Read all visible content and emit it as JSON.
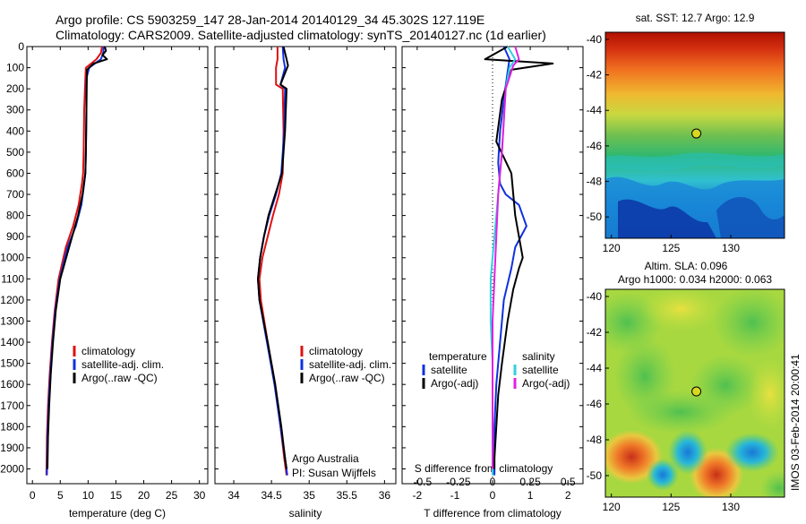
{
  "header": {
    "line1": "Argo profile: CS 5903259_147 28-Jan-2014 20140129_34 45.302S 127.119E",
    "line2": "Climatology: CARS2009. Satellite-adjusted climatology: synTS_20140127.nc (1d earlier)"
  },
  "footer_stamp": "IMOS 03-Feb-2014 20:00:41",
  "colors": {
    "climatology": "#e01010",
    "satellite": "#1030e0",
    "argo": "#000000",
    "sal_satellite": "#30d0e0",
    "sal_argo": "#e020e0"
  },
  "chart_data": [
    {
      "type": "line",
      "id": "temperature",
      "xlabel": "temperature (deg C)",
      "ylabel": "",
      "xlim": [
        -1,
        31.5
      ],
      "ylim": [
        2070,
        0
      ],
      "xticks": [
        "0",
        "5",
        "10",
        "15",
        "20",
        "25",
        "30"
      ],
      "xtick_values": [
        0,
        5,
        10,
        15,
        20,
        25,
        30
      ],
      "yticks": [
        "0",
        "100",
        "200",
        "300",
        "400",
        "500",
        "600",
        "700",
        "800",
        "900",
        "1000",
        "1100",
        "1200",
        "1300",
        "1400",
        "1500",
        "1600",
        "1700",
        "1800",
        "1900",
        "2000"
      ],
      "ytick_values": [
        0,
        100,
        200,
        300,
        400,
        500,
        600,
        700,
        800,
        900,
        1000,
        1100,
        1200,
        1300,
        1400,
        1500,
        1600,
        1700,
        1800,
        1900,
        2000
      ],
      "legend": [
        "climatology",
        "satellite-adj. clim.",
        "Argo(..raw -QC)"
      ],
      "series": [
        {
          "name": "climatology",
          "color": "climatology",
          "x": [
            12.5,
            12.3,
            11.5,
            9.6,
            9.5,
            9.3,
            9.2,
            9.1,
            8.9,
            8.3,
            7.3,
            6.0,
            4.7,
            4.0,
            3.5,
            3.1,
            2.8,
            2.6,
            2.5
          ],
          "y": [
            0,
            30,
            60,
            100,
            150,
            300,
            500,
            600,
            650,
            750,
            850,
            950,
            1100,
            1250,
            1400,
            1550,
            1700,
            1850,
            2030
          ]
        },
        {
          "name": "satellite-adj. clim.",
          "color": "satellite",
          "x": [
            12.8,
            12.7,
            12.3,
            10.2,
            9.7,
            9.7,
            9.6,
            9.5,
            9.3,
            8.8,
            7.8,
            6.3,
            4.9,
            4.1,
            3.6,
            3.2,
            2.9,
            2.7,
            2.6
          ],
          "y": [
            0,
            30,
            60,
            100,
            150,
            300,
            500,
            600,
            650,
            750,
            850,
            950,
            1100,
            1250,
            1400,
            1550,
            1700,
            1850,
            2030
          ]
        },
        {
          "name": "Argo(..raw -QC)",
          "color": "argo",
          "x": [
            13.0,
            13.2,
            12.6,
            13.4,
            11.0,
            9.8,
            9.7,
            9.6,
            9.5,
            9.0,
            8.2,
            6.6,
            5.0,
            4.2,
            3.7,
            3.3,
            3.0,
            2.8,
            2.7
          ],
          "y": [
            0,
            20,
            40,
            60,
            80,
            110,
            300,
            500,
            600,
            700,
            800,
            950,
            1100,
            1250,
            1400,
            1550,
            1700,
            1850,
            2000
          ]
        }
      ]
    },
    {
      "type": "line",
      "id": "salinity",
      "xlabel": "salinity",
      "xlim": [
        33.75,
        36.15
      ],
      "ylim": [
        2070,
        0
      ],
      "xticks": [
        "34",
        "34.5",
        "35",
        "35.5",
        "36"
      ],
      "xtick_values": [
        34,
        34.5,
        35,
        35.5,
        36
      ],
      "legend": [
        "climatology",
        "satellite-adj. clim.",
        "Argo(..raw -QC)"
      ],
      "annotation": [
        "Argo Australia",
        "PI: Susan Wijffels"
      ],
      "series": [
        {
          "name": "climatology",
          "color": "climatology",
          "x": [
            34.58,
            34.58,
            34.56,
            34.56,
            34.65,
            34.66,
            34.65,
            34.6,
            34.52,
            34.45,
            34.38,
            34.34,
            34.36,
            34.45,
            34.55,
            34.62,
            34.67,
            34.7
          ],
          "y": [
            0,
            60,
            100,
            180,
            200,
            400,
            600,
            700,
            800,
            900,
            1000,
            1100,
            1200,
            1400,
            1600,
            1800,
            1950,
            2030
          ]
        },
        {
          "name": "satellite-adj. clim.",
          "color": "satellite",
          "x": [
            34.65,
            34.66,
            34.68,
            34.62,
            34.68,
            34.67,
            34.63,
            34.56,
            34.47,
            34.4,
            34.35,
            34.32,
            34.34,
            34.44,
            34.54,
            34.62,
            34.68,
            34.71
          ],
          "y": [
            0,
            60,
            100,
            180,
            200,
            400,
            600,
            700,
            800,
            900,
            1000,
            1100,
            1200,
            1400,
            1600,
            1800,
            1950,
            2030
          ]
        },
        {
          "name": "Argo(..raw -QC)",
          "color": "argo",
          "x": [
            34.66,
            34.7,
            34.72,
            34.62,
            34.7,
            34.68,
            34.64,
            34.55,
            34.46,
            34.4,
            34.35,
            34.32,
            34.34,
            34.45,
            34.55,
            34.63,
            34.68,
            34.7
          ],
          "y": [
            0,
            60,
            90,
            180,
            200,
            400,
            600,
            700,
            800,
            900,
            1000,
            1100,
            1200,
            1400,
            1600,
            1800,
            1950,
            2000
          ]
        }
      ]
    },
    {
      "type": "line",
      "id": "difference",
      "xlabel": "T difference from climatology",
      "xlabel_top": "S difference from climatology",
      "xlim": [
        -2.4,
        2.4
      ],
      "ylim": [
        2070,
        0
      ],
      "xticks": [
        "-2",
        "-1",
        "0",
        "1",
        "2"
      ],
      "xtick_values": [
        -2,
        -1,
        0,
        1,
        2
      ],
      "sticks": [
        "-0.5",
        "-0.25",
        "0",
        "0.25",
        "0.5"
      ],
      "stick_values": [
        -2,
        -1,
        0,
        1,
        2
      ],
      "legend_left_title": "temperature",
      "legend_right_title": "salinity",
      "legend_left": [
        "satellite",
        "Argo(-adj)"
      ],
      "legend_right": [
        "satellite",
        "Argo(-adj)"
      ],
      "series": [
        {
          "name": "temperature satellite",
          "color": "satellite",
          "x": [
            0.3,
            0.45,
            0.4,
            0.3,
            0.2,
            0.15,
            0.2,
            0.35,
            0.7,
            0.9,
            0.6,
            0.5,
            0.3,
            0.2,
            0.1,
            0.05,
            0.05,
            0.05
          ],
          "y": [
            0,
            60,
            120,
            250,
            400,
            550,
            650,
            700,
            750,
            850,
            950,
            1050,
            1200,
            1400,
            1600,
            1800,
            1950,
            2030
          ]
        },
        {
          "name": "temperature Argo(-adj)",
          "color": "argo",
          "x": [
            0.4,
            -0.2,
            1.6,
            0.5,
            0.25,
            0.1,
            0.5,
            0.6,
            0.7,
            0.8,
            0.7,
            0.55,
            0.4,
            0.25,
            0.15,
            0.1,
            0.05,
            0.05
          ],
          "y": [
            0,
            60,
            80,
            110,
            250,
            450,
            600,
            800,
            900,
            1000,
            1050,
            1150,
            1300,
            1500,
            1650,
            1800,
            1950,
            2000
          ]
        },
        {
          "name": "salinity satellite",
          "color": "sal_satellite",
          "x": [
            0.4,
            0.6,
            0.45,
            0.35,
            0.3,
            0.25,
            0.15,
            0.05,
            -0.05,
            -0.05,
            0.0,
            0.0,
            0.0
          ],
          "y": [
            0,
            60,
            100,
            200,
            350,
            500,
            700,
            900,
            1100,
            1300,
            1500,
            1800,
            2030
          ]
        },
        {
          "name": "salinity Argo(-adj)",
          "color": "sal_argo",
          "x": [
            0.6,
            0.7,
            0.55,
            0.35,
            0.3,
            0.25,
            0.15,
            0.1,
            0.05,
            0.0,
            0.0,
            0.0,
            0.0
          ],
          "y": [
            0,
            60,
            90,
            200,
            350,
            500,
            700,
            900,
            1100,
            1300,
            1500,
            1800,
            2000
          ]
        }
      ]
    },
    {
      "type": "heatmap",
      "id": "sst_map",
      "title": "sat. SST: 12.7 Argo: 12.9",
      "xticks": [
        "120",
        "125",
        "130"
      ],
      "xtick_values": [
        120,
        125,
        130
      ],
      "yticks": [
        "-40",
        "-42",
        "-44",
        "-46",
        "-48",
        "-50"
      ],
      "ytick_values": [
        -40,
        -42,
        -44,
        -46,
        -48,
        -50
      ],
      "xlim": [
        119.5,
        134.5
      ],
      "ylim": [
        -51.2,
        -39.6
      ],
      "marker": {
        "lon": 127.119,
        "lat": -45.302
      }
    },
    {
      "type": "heatmap",
      "id": "sla_map",
      "title_line1": "Altim. SLA: 0.096",
      "title_line2": "Argo h1000: 0.034 h2000: 0.063",
      "xticks": [
        "120",
        "125",
        "130"
      ],
      "xtick_values": [
        120,
        125,
        130
      ],
      "yticks": [
        "-40",
        "-42",
        "-44",
        "-46",
        "-48",
        "-50"
      ],
      "ytick_values": [
        -40,
        -42,
        -44,
        -46,
        -48,
        -50
      ],
      "xlim": [
        119.5,
        134.5
      ],
      "ylim": [
        -51.2,
        -39.6
      ],
      "marker": {
        "lon": 127.119,
        "lat": -45.302
      }
    }
  ]
}
